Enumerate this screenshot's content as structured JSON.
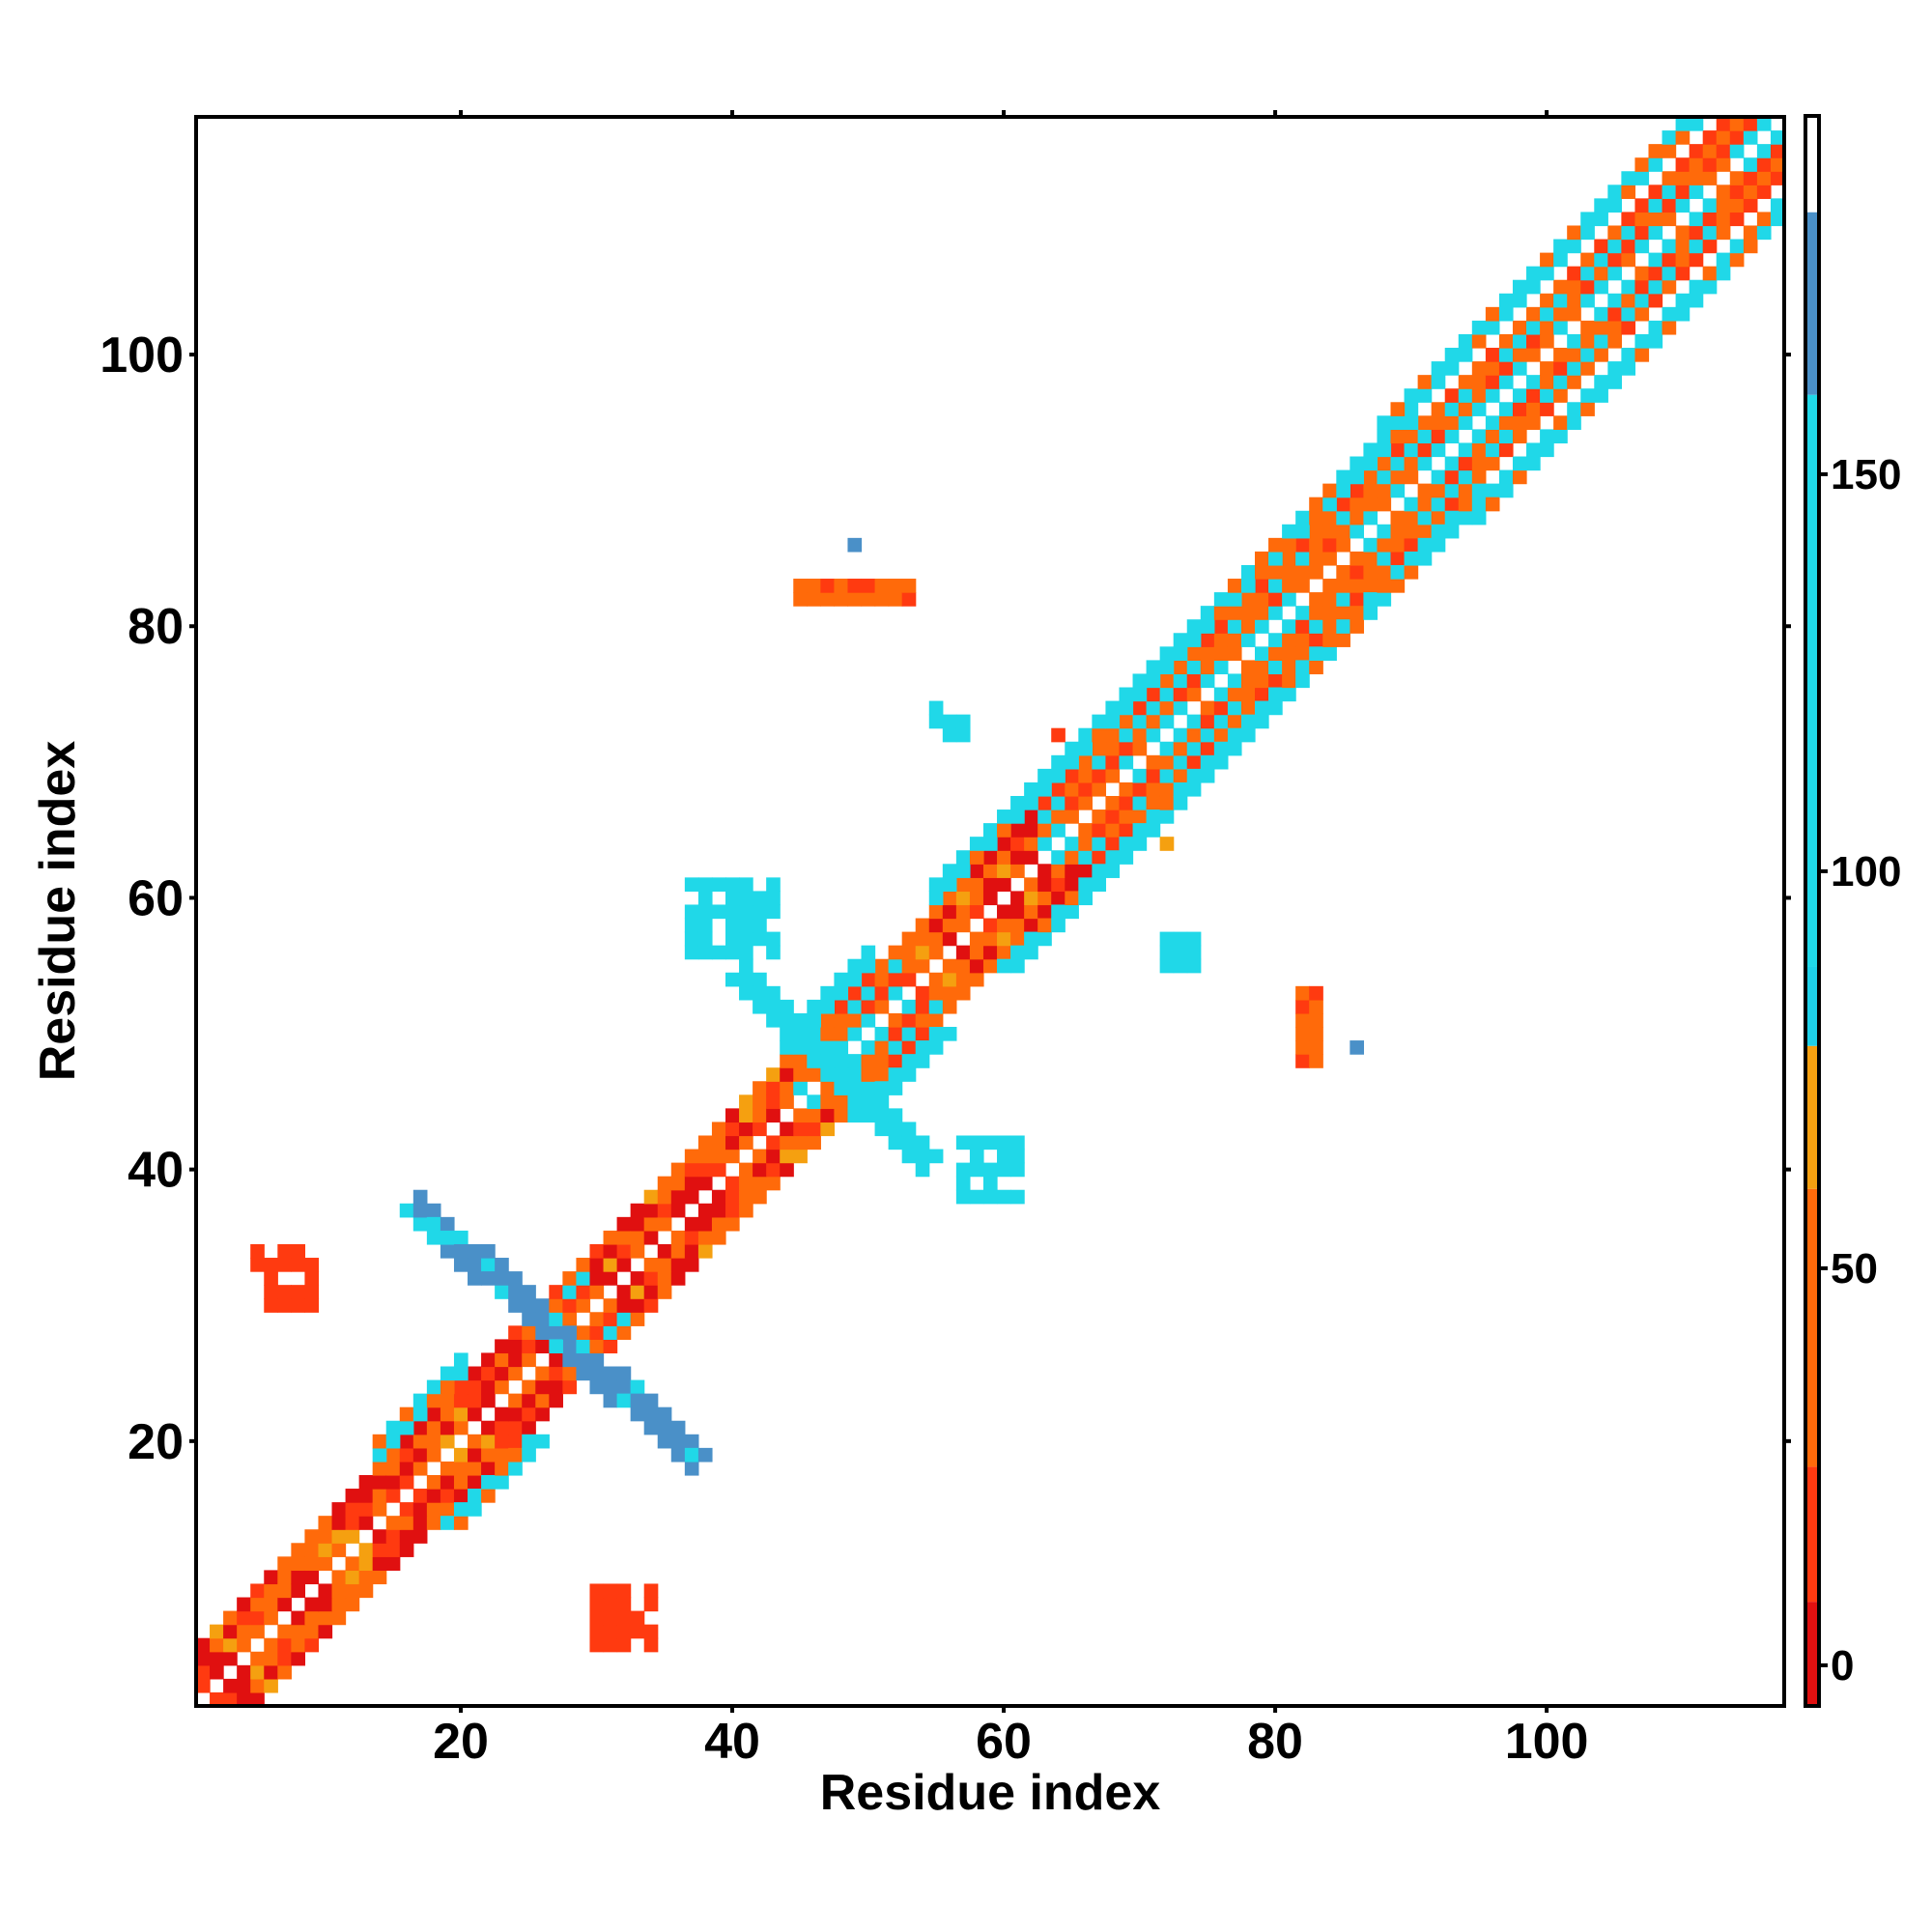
{
  "chart_data": {
    "type": "heatmap",
    "title": "",
    "xlabel": "Residue index",
    "ylabel": "Residue index",
    "xlim": [
      1,
      117
    ],
    "ylim": [
      1,
      117
    ],
    "x_ticks": [
      20,
      40,
      60,
      80,
      100
    ],
    "y_ticks": [
      20,
      40,
      60,
      80,
      100
    ],
    "colorbar": {
      "ticks": [
        0,
        50,
        100,
        150
      ],
      "range": [
        -5,
        195
      ],
      "bands": [
        {
          "from": -5,
          "to": 8,
          "color": "#e01010"
        },
        {
          "from": 8,
          "to": 25,
          "color": "#ff3a10"
        },
        {
          "from": 25,
          "to": 60,
          "color": "#ff6a0a"
        },
        {
          "from": 60,
          "to": 78,
          "color": "#f5a010"
        },
        {
          "from": 78,
          "to": 88,
          "color": "#1ed0e8"
        },
        {
          "from": 88,
          "to": 160,
          "color": "#20d8e8"
        },
        {
          "from": 160,
          "to": 183,
          "color": "#4a90c8"
        },
        {
          "from": 183,
          "to": 195,
          "color": "#ffffff"
        }
      ]
    },
    "colors": {
      "red": "#e8100c",
      "red_orange": "#ff3a10",
      "orange": "#ff6a0a",
      "amber": "#f5a010",
      "cyan": "#20d8e8",
      "light_blue": "#3ab8de",
      "steel_blue": "#4a90c8"
    },
    "diagonal": {
      "from": 1,
      "to": 117,
      "near_band": {
        "start_offset": 1,
        "end_offset": 4
      },
      "far_band_regions": [
        {
          "from": 14,
          "to": 20,
          "offset": 5,
          "value": 105
        },
        {
          "from": 44,
          "to": 50,
          "offset": 5,
          "value": 120
        },
        {
          "from": 55,
          "to": 90,
          "offset": 5,
          "value": 100
        },
        {
          "from": 88,
          "to": 117,
          "offset": 6,
          "value": 100
        }
      ]
    },
    "diagonal_profile": [
      {
        "from": 1,
        "to": 26,
        "value": 20
      },
      {
        "from": 26,
        "to": 29,
        "value": 110
      },
      {
        "from": 29,
        "to": 44,
        "value": 35
      },
      {
        "from": 44,
        "to": 52,
        "value": 125
      },
      {
        "from": 52,
        "to": 62,
        "value": 45
      },
      {
        "from": 62,
        "to": 117,
        "value": 95
      }
    ],
    "blocks": [
      {
        "x": [
          17,
          37
        ],
        "y": [
          19,
          37
        ],
        "shape": "antidiagonal",
        "width": 3,
        "value": 160
      },
      {
        "x": [
          41,
          54
        ],
        "y": [
          41,
          54
        ],
        "shape": "antidiagonal",
        "width": 3,
        "value": 150
      },
      {
        "x": [
          37,
          43
        ],
        "y": [
          56,
          61
        ],
        "value": 155
      },
      {
        "x": [
          57,
          61
        ],
        "y": [
          38,
          42
        ],
        "value": 150
      },
      {
        "x": [
          55,
          57
        ],
        "y": [
          72,
          74
        ],
        "value": 140
      },
      {
        "x": [
          72,
          74
        ],
        "y": [
          55,
          57
        ],
        "value": 140
      },
      {
        "x": [
          45,
          53
        ],
        "y": [
          82,
          83
        ],
        "value": 40
      },
      {
        "x": [
          49,
          49
        ],
        "y": [
          86,
          86
        ],
        "value": 165
      },
      {
        "x": [
          5,
          9
        ],
        "y": [
          30,
          34
        ],
        "value": 15
      },
      {
        "x": [
          30,
          34
        ],
        "y": [
          5,
          9
        ],
        "value": 15
      },
      {
        "x": [
          82,
          83
        ],
        "y": [
          48,
          53
        ],
        "value": 50
      },
      {
        "x": [
          86,
          86
        ],
        "y": [
          49,
          49
        ],
        "value": 165
      },
      {
        "x": [
          64,
          64
        ],
        "y": [
          72,
          72
        ],
        "value": 70
      },
      {
        "x": [
          72,
          72
        ],
        "y": [
          64,
          64
        ],
        "value": 70
      }
    ]
  }
}
